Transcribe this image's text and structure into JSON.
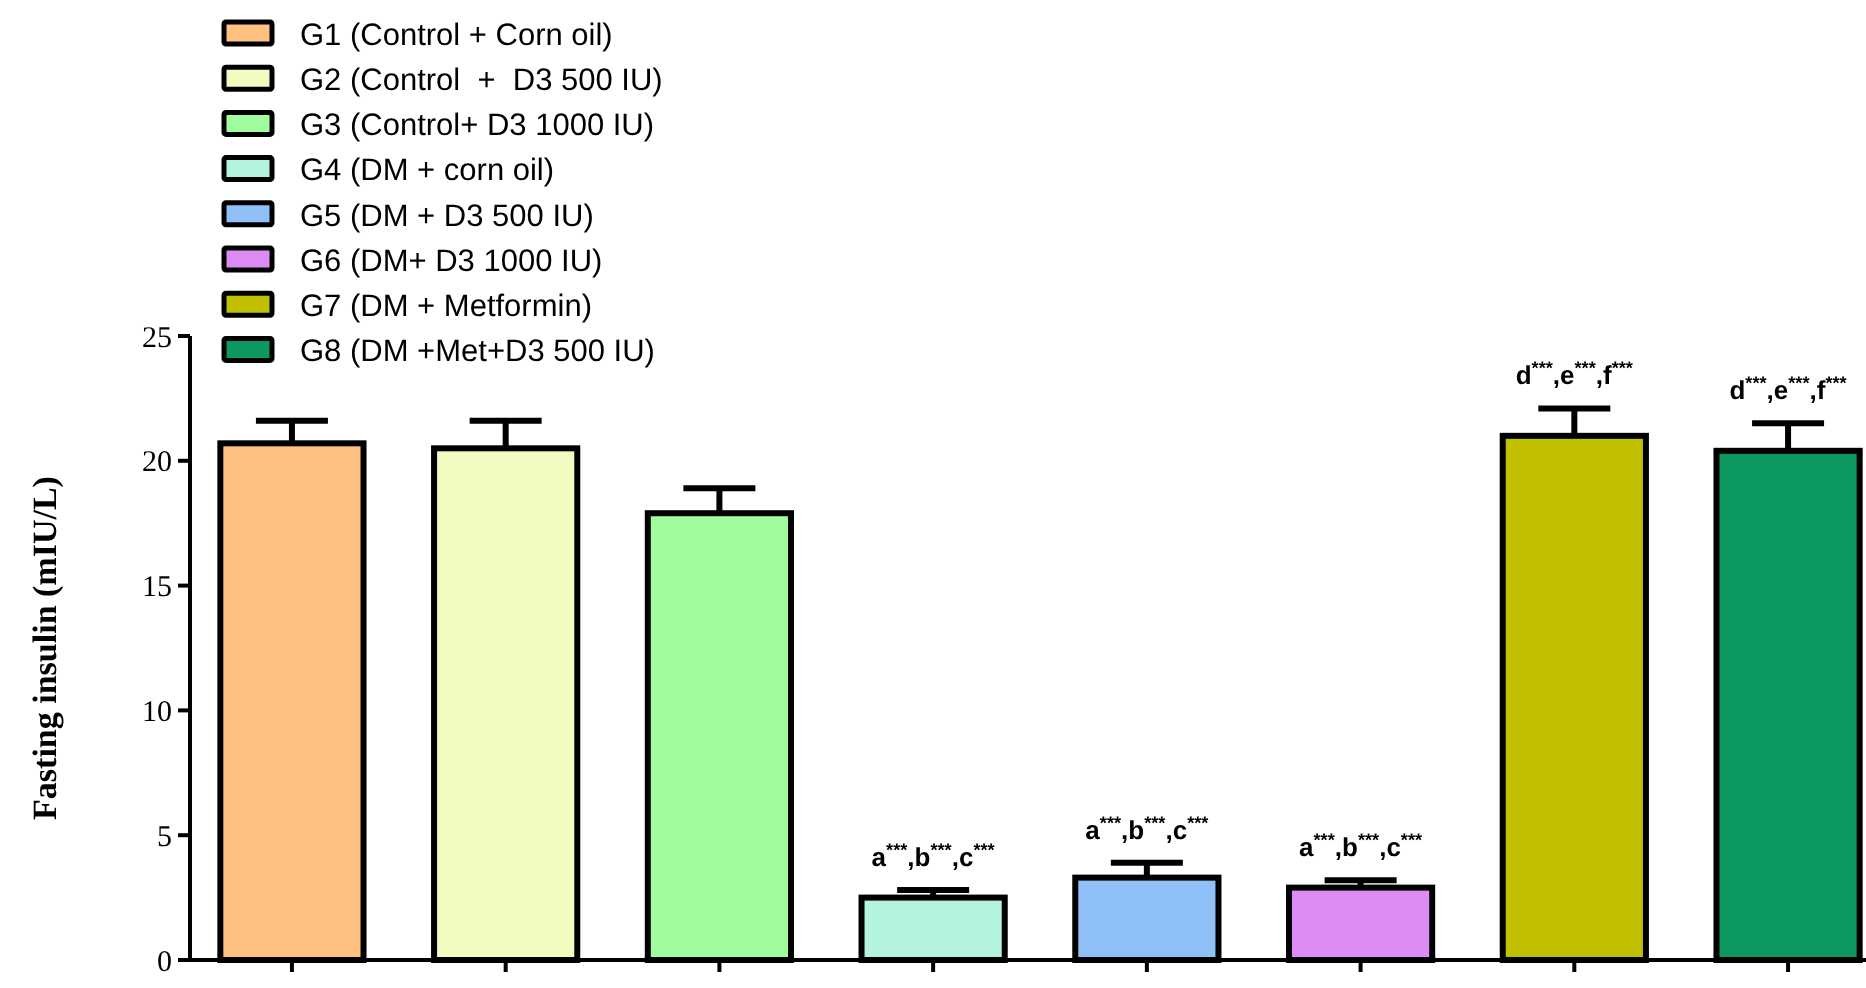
{
  "chart_data": {
    "type": "bar",
    "ylabel": "Fasting insulin (mIU/L)",
    "categories": [
      null,
      null,
      null,
      null,
      null,
      null,
      null,
      null
    ],
    "series": [
      {
        "name": "G1 (Control + Corn oil)",
        "color": "#ffc080",
        "values": [
          20.7,
          null,
          null,
          null,
          null,
          null,
          null,
          null
        ],
        "errors": [
          0.9,
          null,
          null,
          null,
          null,
          null,
          null,
          null
        ]
      },
      {
        "name": "G2 (Control  +  D3 500 IU)",
        "color": "#f2fcc0",
        "values": [
          null,
          20.5,
          null,
          null,
          null,
          null,
          null,
          null
        ],
        "errors": [
          null,
          1.1,
          null,
          null,
          null,
          null,
          null,
          null
        ]
      },
      {
        "name": "G3 (Control+ D3 1000 IU)",
        "color": "#a0fc9c",
        "values": [
          null,
          null,
          17.9,
          null,
          null,
          null,
          null,
          null
        ],
        "errors": [
          null,
          null,
          1.0,
          null,
          null,
          null,
          null,
          null
        ]
      },
      {
        "name": "G4 (DM + corn oil)",
        "color": "#b4f4dc",
        "values": [
          null,
          null,
          null,
          2.5,
          null,
          null,
          null,
          null
        ],
        "errors": [
          null,
          null,
          null,
          0.3,
          null,
          null,
          null,
          null
        ]
      },
      {
        "name": "G5 (DM + D3 500 IU)",
        "color": "#90c0f8",
        "values": [
          null,
          null,
          null,
          null,
          3.3,
          null,
          null,
          null
        ],
        "errors": [
          null,
          null,
          null,
          null,
          0.6,
          null,
          null,
          null
        ]
      },
      {
        "name": "G6 (DM+ D3 1000 IU)",
        "color": "#dc8cf4",
        "values": [
          null,
          null,
          null,
          null,
          null,
          2.9,
          null,
          null
        ],
        "errors": [
          null,
          null,
          null,
          null,
          null,
          0.3,
          null,
          null
        ]
      },
      {
        "name": "G7 (DM + Metformin)",
        "color": "#c0c000",
        "values": [
          null,
          null,
          null,
          null,
          null,
          null,
          21.0,
          null
        ],
        "errors": [
          null,
          null,
          null,
          null,
          null,
          null,
          1.1,
          null
        ]
      },
      {
        "name": "G8 (DM +Met+D3 500 IU)",
        "color": "#0c9860",
        "values": [
          null,
          null,
          null,
          null,
          null,
          null,
          null,
          20.4
        ],
        "errors": [
          null,
          null,
          null,
          null,
          null,
          null,
          null,
          1.1
        ]
      }
    ],
    "ylim": [
      0,
      25
    ],
    "yticks": [
      0,
      5,
      10,
      15,
      20,
      25
    ],
    "grid": false,
    "legend": "top left",
    "annotations": [
      "a$^{***}$,b$^{***}$,c$^{***}$",
      "a$^{***}$,b$^{***}$,c$^{***}$",
      "a$^{***}$,b$^{***}$,c$^{***}$",
      "d$^{***}$,e$^{***}$,f$^{***}$",
      "d$^{***}$,e$^{***}$,f$^{***}$"
    ]
  }
}
